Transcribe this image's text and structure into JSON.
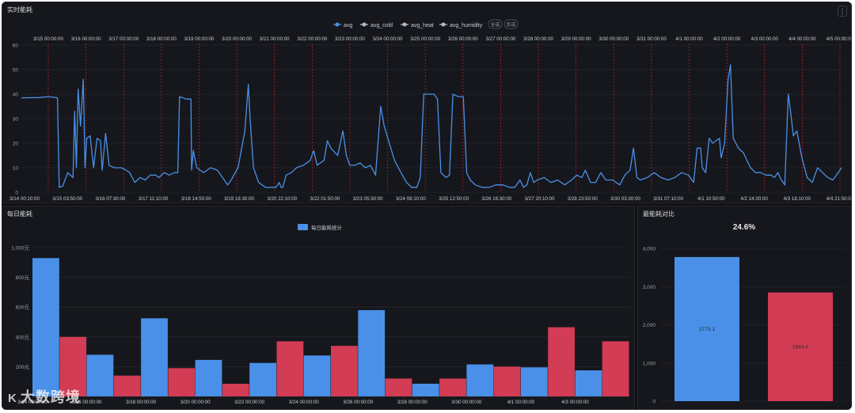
{
  "panels": {
    "top": {
      "title": "实时能耗",
      "menu_icon": "⋮"
    },
    "bottom_left": {
      "title": "每日能耗"
    },
    "bottom_right": {
      "title": "最能耗对比"
    }
  },
  "watermark": {
    "logo": "K",
    "text": "大数跨境"
  },
  "colors": {
    "blue": "#4a90e8",
    "red": "#d23c55",
    "gray": "#b8bcc2",
    "grid": "#2a2d33",
    "vline": "#c2202a"
  },
  "chart_data": [
    {
      "type": "line",
      "title": "实时能耗",
      "legend": [
        "avg",
        "avg_cold",
        "avg_heat",
        "avg_humidity"
      ],
      "legend_buttons": [
        "全选",
        "反选"
      ],
      "ylim": [
        0,
        60
      ],
      "yticks": [
        "0",
        "10",
        "20",
        "30",
        "40",
        "50",
        "60"
      ],
      "x_bottom_labels": [
        "3/14 00:10:00",
        "3/15 03:50:00",
        "3/16 07:30:00",
        "3/17 11:10:00",
        "3/18 14:50:00",
        "3/19 18:30:00",
        "3/20 22:10:00",
        "3/22 01:50:00",
        "3/23 05:30:00",
        "3/24 09:10:00",
        "3/25 12:50:00",
        "3/26 16:30:00",
        "3/27 20:10:00",
        "3/28 23:50:00",
        "3/30 03:30:00",
        "3/31 07:10:00",
        "4/1 10:50:00",
        "4/2 14:30:00",
        "4/3 18:10:00",
        "4/4 21:50:00"
      ],
      "x_top_labels": [
        "3/15 00:00:00",
        "3/16 00:00:00",
        "3/17 00:00:00",
        "3/18 00:00:00",
        "3/19 00:00:00",
        "3/20 00:00:00",
        "3/21 00:00:00",
        "3/22 00:00:00",
        "3/23 00:00:00",
        "3/24 00:00:00",
        "3/25 00:00:00",
        "3/26 00:00:00",
        "3/27 00:00:00",
        "3/28 00:00:00",
        "3/29 00:00:00",
        "3/30 00:00:00",
        "3/31 00:00:00",
        "4/1 00:00:00",
        "4/2 00:00:00",
        "4/3 00:00:00",
        "4/4 00:00:00",
        "4/5 00:00:00"
      ],
      "x_range_days": [
        0,
        22
      ],
      "series": [
        {
          "name": "avg",
          "points": [
            [
              0,
              38.5
            ],
            [
              0.5,
              38.6
            ],
            [
              0.8,
              39
            ],
            [
              1.05,
              38.5
            ],
            [
              1.1,
              2
            ],
            [
              1.2,
              2.5
            ],
            [
              1.35,
              8
            ],
            [
              1.5,
              6
            ],
            [
              1.55,
              33
            ],
            [
              1.6,
              10
            ],
            [
              1.65,
              42
            ],
            [
              1.72,
              27
            ],
            [
              1.8,
              46
            ],
            [
              1.85,
              10
            ],
            [
              1.9,
              22
            ],
            [
              2.0,
              23
            ],
            [
              2.1,
              10
            ],
            [
              2.2,
              22
            ],
            [
              2.3,
              21
            ],
            [
              2.35,
              9
            ],
            [
              2.45,
              24
            ],
            [
              2.55,
              11
            ],
            [
              2.7,
              10
            ],
            [
              2.9,
              10
            ],
            [
              3.05,
              9
            ],
            [
              3.15,
              8
            ],
            [
              3.3,
              4
            ],
            [
              3.45,
              6
            ],
            [
              3.6,
              5
            ],
            [
              3.75,
              7
            ],
            [
              3.9,
              7
            ],
            [
              4.0,
              6
            ],
            [
              4.15,
              8
            ],
            [
              4.3,
              7
            ],
            [
              4.45,
              8
            ],
            [
              4.55,
              8
            ],
            [
              4.6,
              39
            ],
            [
              4.8,
              38
            ],
            [
              4.93,
              38
            ],
            [
              4.95,
              9
            ],
            [
              5.0,
              17
            ],
            [
              5.1,
              10
            ],
            [
              5.3,
              8
            ],
            [
              5.5,
              10
            ],
            [
              5.7,
              9
            ],
            [
              5.85,
              6
            ],
            [
              6.0,
              3
            ],
            [
              6.1,
              5
            ],
            [
              6.3,
              10
            ],
            [
              6.5,
              25
            ],
            [
              6.6,
              44
            ],
            [
              6.65,
              30
            ],
            [
              6.75,
              10
            ],
            [
              6.9,
              4
            ],
            [
              7.1,
              2
            ],
            [
              7.3,
              2
            ],
            [
              7.4,
              2
            ],
            [
              7.5,
              4
            ],
            [
              7.55,
              2
            ],
            [
              7.6,
              2
            ],
            [
              7.7,
              7
            ],
            [
              7.85,
              8
            ],
            [
              8.0,
              10
            ],
            [
              8.2,
              11
            ],
            [
              8.4,
              13
            ],
            [
              8.5,
              17
            ],
            [
              8.6,
              11
            ],
            [
              8.8,
              13
            ],
            [
              8.9,
              21
            ],
            [
              9.0,
              18
            ],
            [
              9.2,
              15
            ],
            [
              9.35,
              25
            ],
            [
              9.45,
              15
            ],
            [
              9.55,
              11
            ],
            [
              9.7,
              11
            ],
            [
              9.85,
              12
            ],
            [
              10.0,
              10
            ],
            [
              10.15,
              11
            ],
            [
              10.3,
              7
            ],
            [
              10.45,
              35
            ],
            [
              10.55,
              27
            ],
            [
              10.7,
              20
            ],
            [
              10.85,
              13
            ],
            [
              11.0,
              9
            ],
            [
              11.2,
              4
            ],
            [
              11.35,
              2
            ],
            [
              11.5,
              2
            ],
            [
              11.6,
              6
            ],
            [
              11.7,
              40
            ],
            [
              11.85,
              40
            ],
            [
              12.0,
              40
            ],
            [
              12.1,
              38
            ],
            [
              12.2,
              8
            ],
            [
              12.35,
              6
            ],
            [
              12.45,
              7
            ],
            [
              12.55,
              40
            ],
            [
              12.7,
              39
            ],
            [
              12.85,
              39
            ],
            [
              12.95,
              8
            ],
            [
              13.05,
              5
            ],
            [
              13.2,
              3
            ],
            [
              13.4,
              2
            ],
            [
              13.6,
              2
            ],
            [
              13.8,
              3
            ],
            [
              14.0,
              3
            ],
            [
              14.2,
              2
            ],
            [
              14.35,
              2
            ],
            [
              14.5,
              5
            ],
            [
              14.6,
              2
            ],
            [
              14.7,
              3
            ],
            [
              14.8,
              8
            ],
            [
              14.9,
              4
            ],
            [
              15.0,
              5
            ],
            [
              15.2,
              6
            ],
            [
              15.4,
              4
            ],
            [
              15.6,
              5
            ],
            [
              15.8,
              3
            ],
            [
              16.0,
              5
            ],
            [
              16.15,
              7
            ],
            [
              16.3,
              6
            ],
            [
              16.4,
              9
            ],
            [
              16.55,
              4
            ],
            [
              16.7,
              4
            ],
            [
              16.85,
              8
            ],
            [
              17.0,
              5
            ],
            [
              17.2,
              5
            ],
            [
              17.4,
              3
            ],
            [
              17.55,
              7
            ],
            [
              17.7,
              9
            ],
            [
              17.8,
              18
            ],
            [
              17.9,
              6
            ],
            [
              18.0,
              5
            ],
            [
              18.2,
              6
            ],
            [
              18.4,
              8
            ],
            [
              18.6,
              6
            ],
            [
              18.8,
              5
            ],
            [
              19.0,
              6
            ],
            [
              19.2,
              8
            ],
            [
              19.4,
              7
            ],
            [
              19.55,
              4
            ],
            [
              19.65,
              18
            ],
            [
              19.75,
              18
            ],
            [
              19.8,
              10
            ],
            [
              19.9,
              8
            ],
            [
              20.0,
              22
            ],
            [
              20.1,
              20
            ],
            [
              20.2,
              21
            ],
            [
              20.3,
              22
            ],
            [
              20.35,
              14
            ],
            [
              20.45,
              20
            ],
            [
              20.55,
              46
            ],
            [
              20.62,
              52
            ],
            [
              20.7,
              22
            ],
            [
              20.85,
              18
            ],
            [
              21.0,
              16
            ],
            [
              21.2,
              10
            ],
            [
              21.35,
              8
            ],
            [
              21.5,
              8
            ],
            [
              21.65,
              7
            ],
            [
              21.8,
              7
            ],
            [
              21.9,
              6
            ],
            [
              22.0,
              8
            ],
            [
              22.1,
              5
            ],
            [
              22.2,
              3
            ],
            [
              22.3,
              40
            ],
            [
              22.35,
              35
            ],
            [
              22.45,
              23
            ],
            [
              22.55,
              25
            ],
            [
              22.7,
              14
            ],
            [
              22.85,
              6
            ],
            [
              23.0,
              4
            ],
            [
              23.15,
              10
            ],
            [
              23.3,
              8
            ],
            [
              23.45,
              6
            ],
            [
              23.6,
              5
            ],
            [
              23.75,
              8
            ],
            [
              23.85,
              10
            ]
          ]
        }
      ],
      "x_axis_points_range": [
        0,
        23.85
      ]
    },
    {
      "type": "bar",
      "title": "每日能耗",
      "legend": [
        "每日能耗统计"
      ],
      "yticks": [
        "200元",
        "400元",
        "600元",
        "800元",
        "1,000元"
      ],
      "ylim": [
        0,
        1000
      ],
      "x_labels": [
        "3/14 00:00:00",
        "3/16 00:00:00",
        "3/18 00:00:00",
        "3/20 00:00:00",
        "3/22 00:00:00",
        "3/24 00:00:00",
        "3/26 00:00:00",
        "3/28 00:00:00",
        "3/30 00:00:00",
        "4/1 00:00:00",
        "4/3 00:00:00"
      ],
      "values": [
        930,
        400,
        280,
        140,
        525,
        190,
        245,
        85,
        225,
        370,
        275,
        340,
        580,
        120,
        85,
        120,
        215,
        200,
        195,
        465,
        175,
        370
      ],
      "colors_alternate": [
        "blue",
        "red"
      ]
    },
    {
      "type": "bar",
      "title": "最能耗对比",
      "headline": "24.6%",
      "yticks": [
        "0",
        "1,000",
        "2,000",
        "3,000",
        "4,000"
      ],
      "ylim": [
        0,
        4000
      ],
      "categories": [
        "",
        ""
      ],
      "values": [
        3773.1,
        2844.6
      ],
      "labels": [
        "3773.1",
        "2844.6"
      ]
    }
  ]
}
